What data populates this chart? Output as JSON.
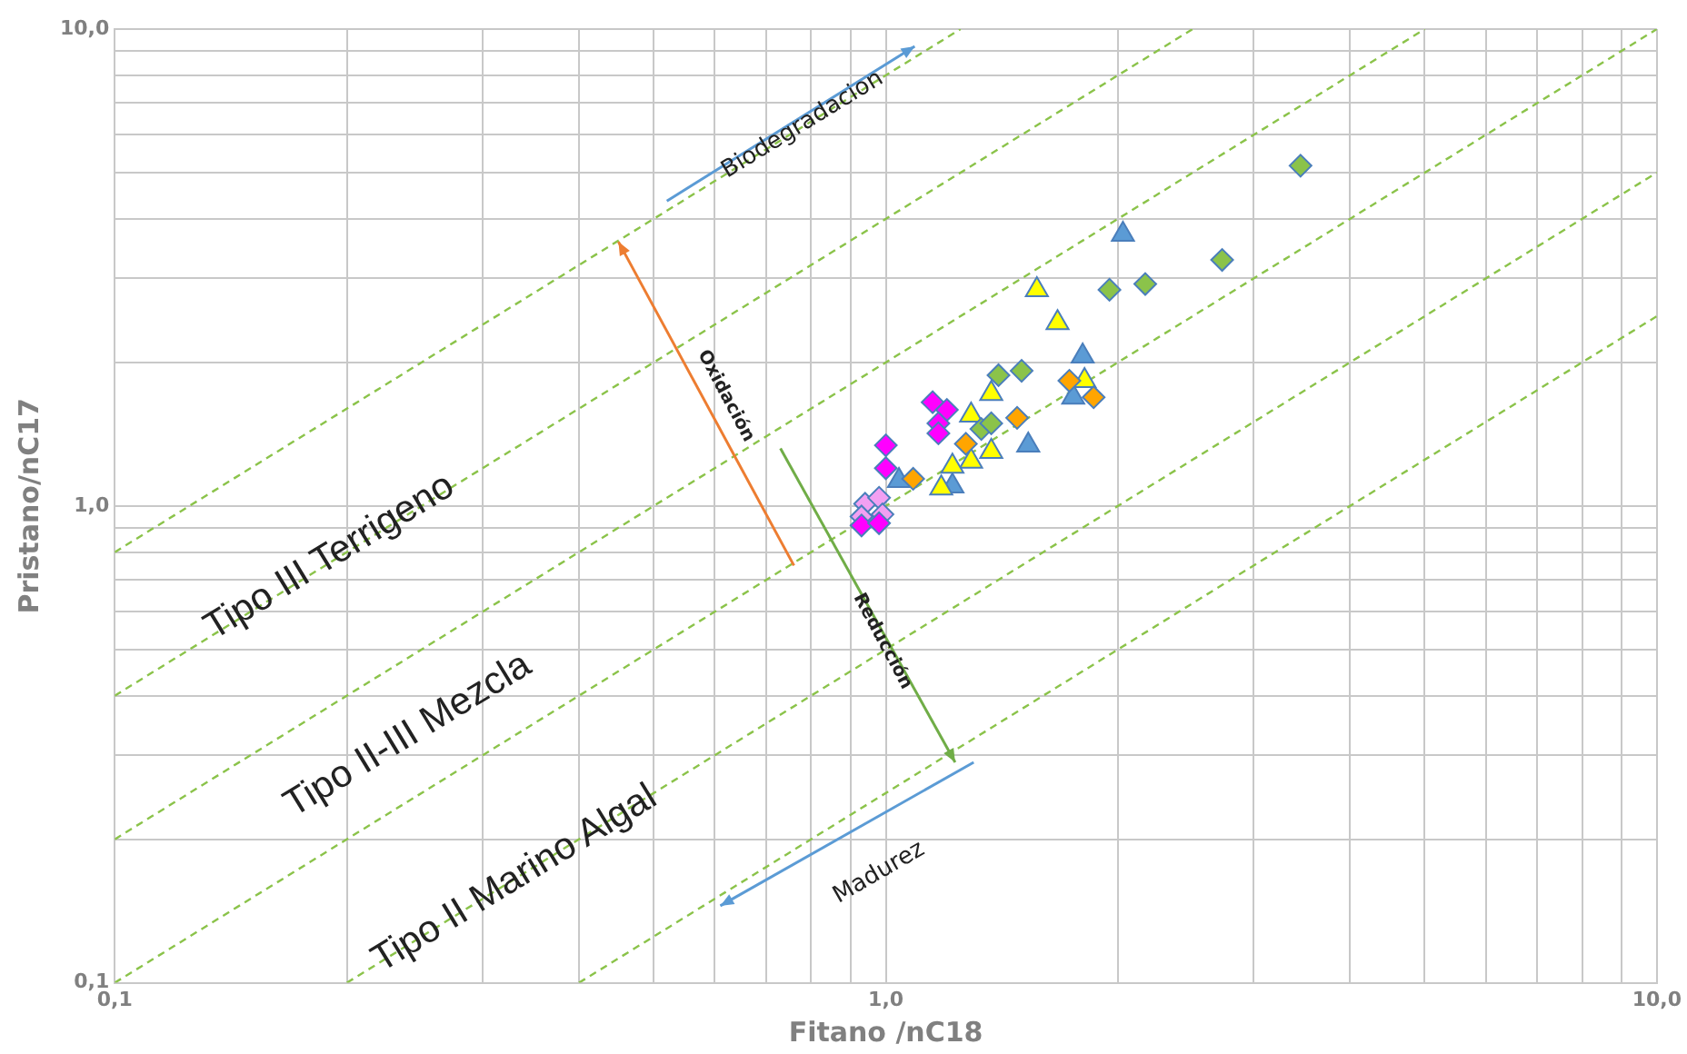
{
  "chart_data": {
    "type": "scatter",
    "xlabel": "Fitano /nC18",
    "ylabel": "Pristano/nC17",
    "log": "xy",
    "xlim": [
      0.1,
      10
    ],
    "ylim": [
      0.1,
      10
    ],
    "xticks": [
      {
        "value": 0.1,
        "label": "0,1"
      },
      {
        "value": 0.2,
        "label": null
      },
      {
        "value": 0.3,
        "label": null
      },
      {
        "value": 0.4,
        "label": null
      },
      {
        "value": 0.5,
        "label": null
      },
      {
        "value": 0.6,
        "label": null
      },
      {
        "value": 0.7,
        "label": null
      },
      {
        "value": 0.8,
        "label": null
      },
      {
        "value": 0.9,
        "label": null
      },
      {
        "value": 1,
        "label": "1,0"
      },
      {
        "value": 2,
        "label": null
      },
      {
        "value": 3,
        "label": null
      },
      {
        "value": 4,
        "label": null
      },
      {
        "value": 5,
        "label": null
      },
      {
        "value": 6,
        "label": null
      },
      {
        "value": 7,
        "label": null
      },
      {
        "value": 8,
        "label": null
      },
      {
        "value": 9,
        "label": null
      },
      {
        "value": 10,
        "label": "10,0"
      }
    ],
    "yticks": [
      {
        "value": 0.1,
        "label": "0,1"
      },
      {
        "value": 0.2,
        "label": null
      },
      {
        "value": 0.3,
        "label": null
      },
      {
        "value": 0.4,
        "label": null
      },
      {
        "value": 0.5,
        "label": null
      },
      {
        "value": 0.6,
        "label": null
      },
      {
        "value": 0.7,
        "label": null
      },
      {
        "value": 0.8,
        "label": null
      },
      {
        "value": 0.9,
        "label": null
      },
      {
        "value": 1,
        "label": "1,0"
      },
      {
        "value": 2,
        "label": null
      },
      {
        "value": 3,
        "label": null
      },
      {
        "value": 4,
        "label": null
      },
      {
        "value": 5,
        "label": null
      },
      {
        "value": 6,
        "label": null
      },
      {
        "value": 7,
        "label": null
      },
      {
        "value": 8,
        "label": null
      },
      {
        "value": 9,
        "label": null
      },
      {
        "value": 10,
        "label": "10,0"
      }
    ],
    "grid": true,
    "legend": false,
    "series": [
      {
        "type": "line",
        "color": "#8bc34a",
        "line_style": "dashed",
        "marker": "none",
        "x": [
          0.1,
          1.25
        ],
        "values": [
          0.8,
          10
        ]
      },
      {
        "type": "line",
        "color": "#8bc34a",
        "line_style": "dashed",
        "marker": "none",
        "x": [
          0.1,
          2.5
        ],
        "values": [
          0.4,
          10
        ]
      },
      {
        "type": "line",
        "color": "#8bc34a",
        "line_style": "dashed",
        "marker": "none",
        "x": [
          0.1,
          5
        ],
        "values": [
          0.2,
          10
        ]
      },
      {
        "type": "line",
        "color": "#8bc34a",
        "line_style": "dashed",
        "marker": "none",
        "x": [
          0.1,
          10
        ],
        "values": [
          0.1,
          10
        ]
      },
      {
        "type": "line",
        "color": "#8bc34a",
        "line_style": "dashed",
        "marker": "none",
        "x": [
          0.2,
          10
        ],
        "values": [
          0.1,
          5
        ]
      },
      {
        "type": "line",
        "color": "#8bc34a",
        "line_style": "dashed",
        "marker": "none",
        "x": [
          0.4,
          10
        ],
        "values": [
          0.1,
          2.5
        ]
      },
      {
        "color": "#ff00ff",
        "marker": "diamond",
        "x": [
          1.15,
          1.2,
          1.17,
          1.17,
          1.0,
          1.0,
          0.93,
          0.98
        ],
        "values": [
          1.65,
          1.59,
          1.49,
          1.42,
          1.34,
          1.2,
          0.91,
          0.92
        ]
      },
      {
        "color": "#f2a0f2",
        "marker": "diamond",
        "x": [
          0.94,
          0.98,
          0.99,
          0.93
        ],
        "values": [
          1.01,
          1.04,
          0.96,
          0.95
        ]
      },
      {
        "color": "#8bc34a",
        "marker": "diamond",
        "x": [
          1.4,
          1.5,
          1.33,
          1.37,
          3.45,
          2.73,
          1.95,
          2.17
        ],
        "values": [
          1.88,
          1.92,
          1.45,
          1.49,
          5.17,
          3.28,
          2.84,
          2.92
        ]
      },
      {
        "color": "#ffa500",
        "marker": "diamond",
        "x": [
          1.73,
          1.86,
          1.27,
          1.085,
          1.48
        ],
        "values": [
          1.83,
          1.69,
          1.35,
          1.14,
          1.53
        ]
      },
      {
        "color": "#ffff00",
        "marker": "triangle",
        "x": [
          1.57,
          1.67,
          1.37,
          1.81,
          1.29,
          1.37,
          1.29,
          1.22,
          1.18
        ],
        "values": [
          2.84,
          2.42,
          1.72,
          1.83,
          1.55,
          1.3,
          1.24,
          1.21,
          1.09
        ]
      },
      {
        "color": "#5b9bd5",
        "marker": "triangle",
        "x": [
          1.8,
          1.75,
          1.53,
          1.22,
          1.04,
          2.03
        ],
        "values": [
          2.06,
          1.69,
          1.34,
          1.1,
          1.13,
          3.71
        ]
      }
    ],
    "annotations": [
      "Biodegradacion",
      "Oxidación",
      "Reducción",
      "Madurez",
      "Tipo III Terrigeno",
      "Tipo II-III Mezcla",
      "Tipo II Marino Algal"
    ]
  }
}
